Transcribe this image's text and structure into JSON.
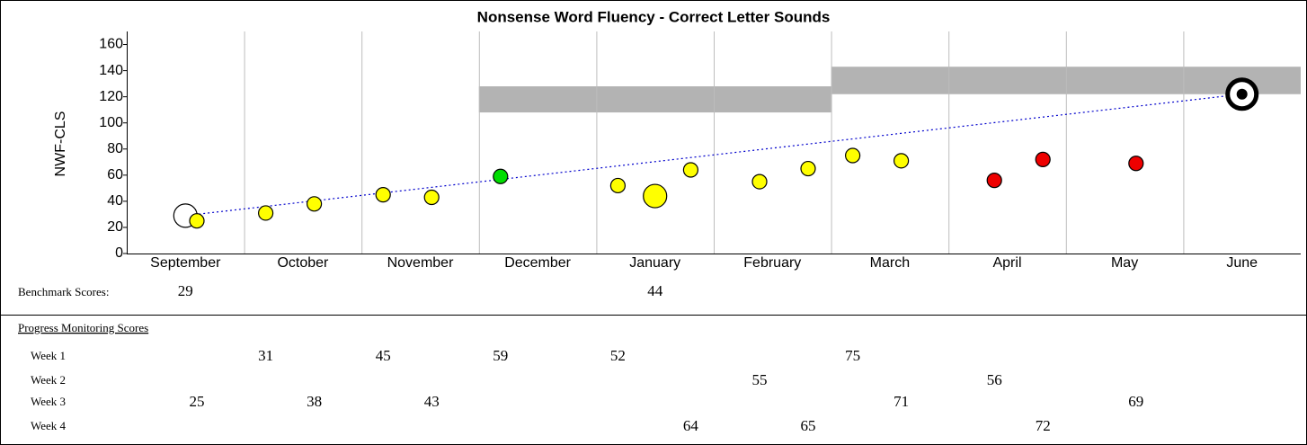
{
  "chart_data": {
    "type": "scatter",
    "title": "Nonsense Word Fluency - Correct Letter Sounds",
    "y_label": "NWF-CLS",
    "categories": [
      "September",
      "October",
      "November",
      "December",
      "January",
      "February",
      "March",
      "April",
      "May",
      "June"
    ],
    "ylim": [
      0,
      170
    ],
    "yticks": [
      0,
      20,
      40,
      60,
      80,
      100,
      120,
      140,
      160
    ],
    "grid": true,
    "benchmark": {
      "label": "Benchmark Scores:",
      "color": "#ffff00",
      "values": [
        29,
        null,
        null,
        null,
        44,
        null,
        null,
        null,
        null,
        null
      ],
      "colors": [
        "#ffffff",
        null,
        null,
        null,
        "#ffff00",
        null,
        null,
        null,
        null,
        null
      ]
    },
    "progress": {
      "title": "Progress Monitoring Scores",
      "weeks": [
        {
          "name": "Week 1",
          "values": [
            null,
            31,
            45,
            59,
            52,
            null,
            75,
            null,
            null,
            null
          ],
          "colors": [
            null,
            "#ffff00",
            "#ffff00",
            "#00dd00",
            "#ffff00",
            null,
            "#ffff00",
            null,
            null,
            null
          ]
        },
        {
          "name": "Week 2",
          "values": [
            null,
            null,
            null,
            null,
            null,
            55,
            null,
            56,
            null,
            null
          ],
          "colors": [
            null,
            null,
            null,
            null,
            null,
            "#ffff00",
            null,
            "#ee0000",
            null,
            null
          ]
        },
        {
          "name": "Week 3",
          "values": [
            25,
            38,
            43,
            null,
            null,
            null,
            71,
            null,
            69,
            null
          ],
          "colors": [
            "#ffff00",
            "#ffff00",
            "#ffff00",
            null,
            null,
            null,
            "#ffff00",
            null,
            "#ee0000",
            null
          ]
        },
        {
          "name": "Week 4",
          "values": [
            null,
            null,
            null,
            null,
            64,
            65,
            null,
            72,
            null,
            null
          ],
          "colors": [
            null,
            null,
            null,
            null,
            "#ffff00",
            "#ffff00",
            null,
            "#ee0000",
            null,
            null
          ]
        }
      ]
    },
    "bands": [
      {
        "start": "December",
        "end": "February",
        "low": 108,
        "high": 128,
        "color": "#b3b3b3"
      },
      {
        "start": "March",
        "end": "June",
        "low": 122,
        "high": 143,
        "color": "#b3b3b3"
      }
    ],
    "goal": {
      "month": "June",
      "value": 122
    },
    "aimline_color": "#0000cc"
  }
}
